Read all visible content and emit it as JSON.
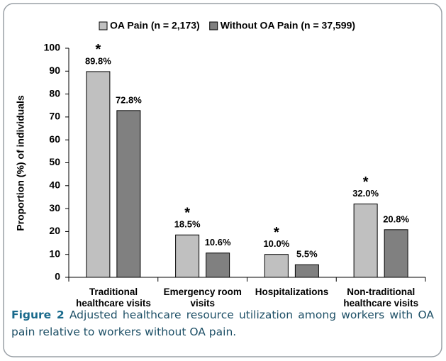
{
  "chart_data": {
    "type": "bar",
    "categories": [
      "Traditional\nhealthcare visits",
      "Emergency room\nvisits",
      "Hospitalizations",
      "Non-traditional\nhealthcare visits"
    ],
    "series": [
      {
        "name": "OA Pain (n = 2,173)",
        "color": "#c0c0c0",
        "values": [
          89.8,
          18.5,
          10.0,
          32.0
        ],
        "value_labels": [
          "89.8%",
          "18.5%",
          "10.0%",
          "32.0%"
        ],
        "markers": [
          "*",
          "*",
          "*",
          "*"
        ]
      },
      {
        "name": "Without OA Pain (n = 37,599)",
        "color": "#808080",
        "values": [
          72.8,
          10.6,
          5.5,
          20.8
        ],
        "value_labels": [
          "72.8%",
          "10.6%",
          "5.5%",
          "20.8%"
        ]
      }
    ],
    "ylabel": "Proportion (%) of individuals",
    "ylim": [
      0,
      100
    ],
    "yticks": [
      0,
      10,
      20,
      30,
      40,
      50,
      60,
      70,
      80,
      90,
      100
    ],
    "legend": "top"
  },
  "caption": {
    "label": "Figure 2",
    "text": "Adjusted healthcare resource utilization among workers with OA pain relative to workers without OA pain."
  }
}
